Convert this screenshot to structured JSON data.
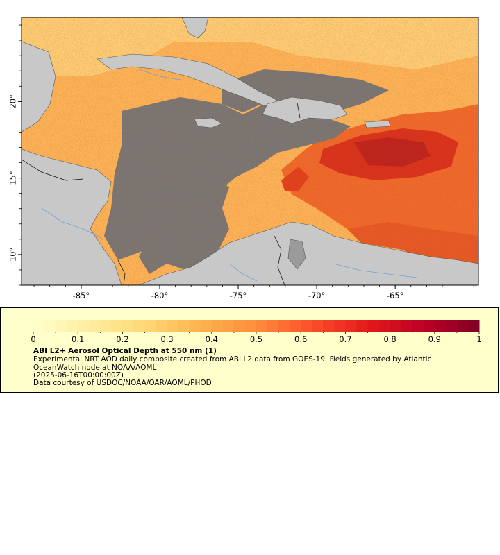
{
  "map": {
    "lon_range": [
      -88.8,
      -59.7
    ],
    "lat_range": [
      8,
      25.5
    ],
    "x_ticks": [
      {
        "value": -85,
        "label": "-85°"
      },
      {
        "value": -80,
        "label": "-80°"
      },
      {
        "value": -75,
        "label": "-75°"
      },
      {
        "value": -70,
        "label": "-70°"
      },
      {
        "value": -65,
        "label": "-65°"
      }
    ],
    "y_ticks": [
      {
        "value": 10,
        "label": "10°"
      },
      {
        "value": 15,
        "label": "15°"
      },
      {
        "value": 20,
        "label": "20°"
      }
    ],
    "colors": {
      "land": "#c8c8c8",
      "nodata": "#787878",
      "border": "#000000",
      "river": "#6f9fd8",
      "frame": "#000000"
    }
  },
  "colorbar": {
    "variable": "ABI L2+ Aerosol Optical Depth at 550 nm (1)",
    "range": [
      0,
      1
    ],
    "tick_labels": [
      "0",
      "0.1",
      "0.2",
      "0.3",
      "0.4",
      "0.5",
      "0.6",
      "0.7",
      "0.8",
      "0.9",
      "1"
    ],
    "palette": [
      "#ffffcc",
      "#ffeda0",
      "#fed976",
      "#feb24c",
      "#fd8d3c",
      "#fc4e2a",
      "#e31a1c",
      "#bd0026",
      "#800026"
    ]
  },
  "legend": {
    "title": "ABI L2+ Aerosol Optical Depth at 550 nm (1)",
    "description": "Experimental NRT AOD daily composite created from ABI L2 data from GOES-19. Fields generated by Atlantic OceanWatch node at NOAA/AOML",
    "time": "(2025-06-16T00:00:00Z)",
    "credit": "Data courtesy of USDOC/NOAA/OAR/AOML/PHOD"
  }
}
